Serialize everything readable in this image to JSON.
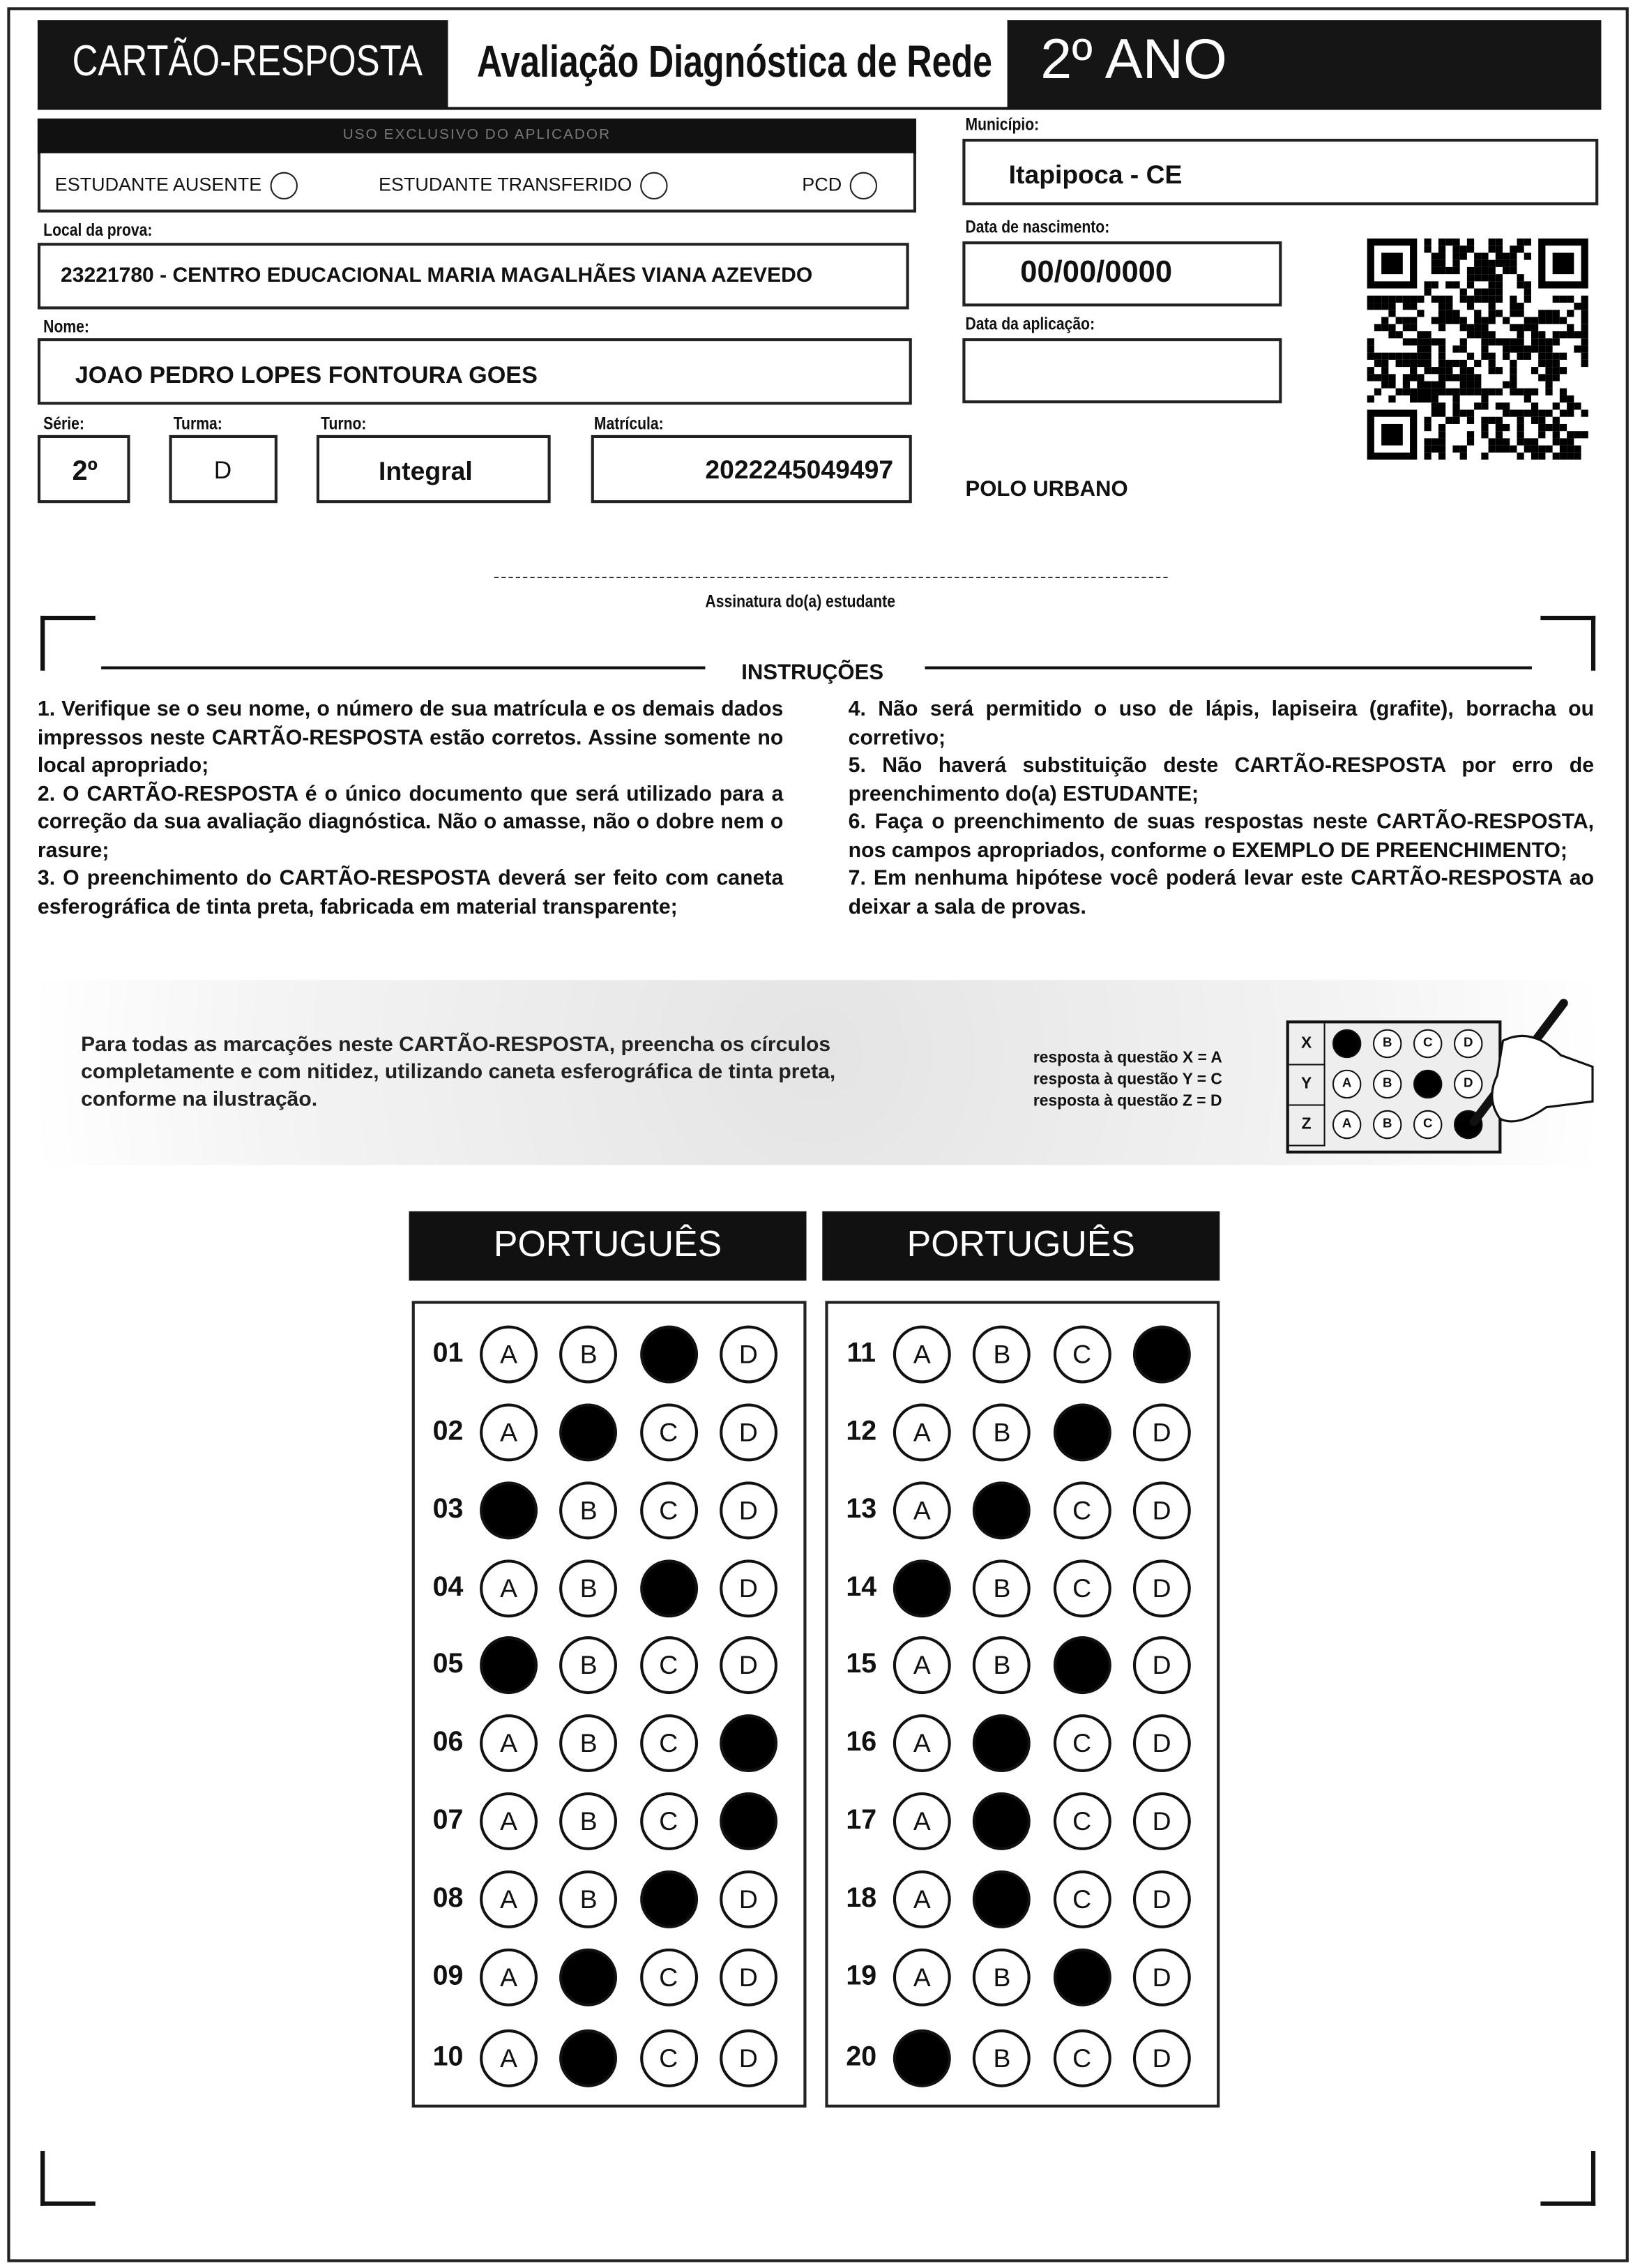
{
  "header": {
    "card_title": "CARTÃO-RESPOSTA",
    "exam_title": "Avaliação Diagnóstica de Rede",
    "grade": "2º ANO"
  },
  "applicator": {
    "banner": "USO EXCLUSIVO DO APLICADOR",
    "options": [
      "ESTUDANTE AUSENTE",
      "ESTUDANTE TRANSFERIDO",
      "PCD"
    ]
  },
  "fields": {
    "municipio_label": "Município:",
    "municipio": "Itapipoca - CE",
    "local_label": "Local da prova:",
    "local": "23221780 - CENTRO EDUCACIONAL MARIA MAGALHÃES VIANA AZEVEDO",
    "nascimento_label": "Data de nascimento:",
    "nascimento": "00/00/0000",
    "nome_label": "Nome:",
    "nome": "JOAO PEDRO LOPES FONTOURA GOES",
    "aplicacao_label": "Data da aplicação:",
    "aplicacao": "",
    "serie_label": "Série:",
    "serie": "2º",
    "turma_label": "Turma:",
    "turma": "D",
    "turno_label": "Turno:",
    "turno": "Integral",
    "matricula_label": "Matrícula:",
    "matricula": "2022245049497",
    "polo": "POLO URBANO"
  },
  "signature_label": "Assinatura do(a) estudante",
  "instructions": {
    "title": "INSTRUÇÕES",
    "left": [
      "1. Verifique se o seu nome, o número de sua matrícula e os demais dados impressos neste CARTÃO-RESPOSTA estão corretos. Assine somente no local apropriado;",
      "2. O CARTÃO-RESPOSTA é o único documento que será utilizado para a correção da sua avaliação diagnóstica. Não o amasse, não o dobre nem o rasure;",
      "3. O preenchimento do CARTÃO-RESPOSTA deverá ser feito com caneta esferográfica de tinta preta, fabricada em material transparente;"
    ],
    "right": [
      "4. Não será permitido o uso de lápis, lapiseira (grafite), borracha ou corretivo;",
      "5. Não haverá substituição deste CARTÃO-RESPOSTA por erro de preenchimento do(a) ESTUDANTE;",
      "6. Faça o preenchimento de suas respostas neste CARTÃO-RESPOSTA, nos campos apropriados, conforme o EXEMPLO DE PREENCHIMENTO;",
      "7. Em nenhuma hipótese você poderá levar este CARTÃO-RESPOSTA ao deixar a sala de provas."
    ]
  },
  "example": {
    "text": "Para todas as marcações neste CARTÃO-RESPOSTA, preencha os círculos completamente e com nitidez, utilizando caneta esferográfica de tinta preta, conforme na ilustração.",
    "legend": [
      "resposta à questão X = A",
      "resposta à questão Y = C",
      "resposta à questão Z = D"
    ],
    "rows": [
      {
        "q": "X",
        "filled": "A"
      },
      {
        "q": "Y",
        "filled": "C"
      },
      {
        "q": "Z",
        "filled": "D"
      }
    ]
  },
  "options": [
    "A",
    "B",
    "C",
    "D"
  ],
  "sections": [
    {
      "subject": "PORTUGUÊS",
      "questions": [
        {
          "n": "01",
          "marked": "C"
        },
        {
          "n": "02",
          "marked": "B"
        },
        {
          "n": "03",
          "marked": "A"
        },
        {
          "n": "04",
          "marked": "C"
        },
        {
          "n": "05",
          "marked": "A"
        },
        {
          "n": "06",
          "marked": "D"
        },
        {
          "n": "07",
          "marked": "D"
        },
        {
          "n": "08",
          "marked": "C"
        },
        {
          "n": "09",
          "marked": "B"
        },
        {
          "n": "10",
          "marked": "B"
        }
      ]
    },
    {
      "subject": "PORTUGUÊS",
      "questions": [
        {
          "n": "11",
          "marked": "D"
        },
        {
          "n": "12",
          "marked": "C"
        },
        {
          "n": "13",
          "marked": "B"
        },
        {
          "n": "14",
          "marked": "A"
        },
        {
          "n": "15",
          "marked": "C"
        },
        {
          "n": "16",
          "marked": "B"
        },
        {
          "n": "17",
          "marked": "B"
        },
        {
          "n": "18",
          "marked": "B"
        },
        {
          "n": "19",
          "marked": "C"
        },
        {
          "n": "20",
          "marked": "A"
        }
      ]
    }
  ]
}
